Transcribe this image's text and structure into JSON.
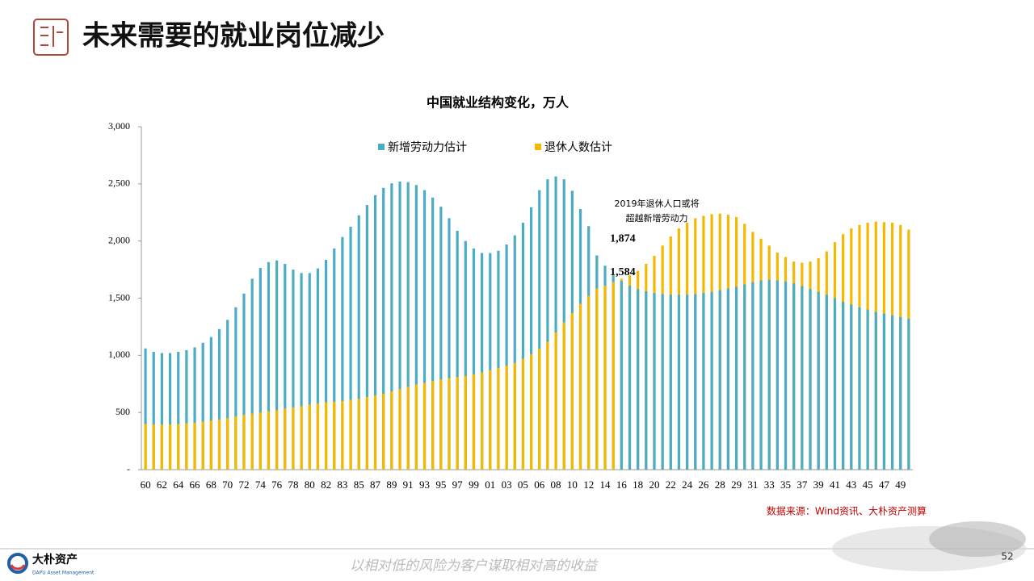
{
  "header": {
    "title": "未来需要的就业岗位减少"
  },
  "chart_data": {
    "type": "bar",
    "title": "中国就业结构变化，万人",
    "categories": [
      "60",
      null,
      "62",
      null,
      "64",
      null,
      "66",
      null,
      "68",
      null,
      "70",
      null,
      "72",
      null,
      "74",
      null,
      "76",
      null,
      "78",
      null,
      "80",
      null,
      "82",
      null,
      "83",
      null,
      "85",
      null,
      "87",
      null,
      "89",
      null,
      "91",
      null,
      "93",
      null,
      "95",
      null,
      "97",
      null,
      "99",
      null,
      "01",
      null,
      "03",
      null,
      "05",
      null,
      "06",
      null,
      "08",
      null,
      "10",
      null,
      "12",
      null,
      "14",
      null,
      "16",
      null,
      "18",
      null,
      "20",
      null,
      "22",
      null,
      "24",
      null,
      "26",
      null,
      "28",
      null,
      "29",
      null,
      "31",
      null,
      "33",
      null,
      "35",
      null,
      "37",
      null,
      "39",
      null,
      "41",
      null,
      "43",
      null,
      "45",
      null,
      "47",
      null,
      "49",
      null
    ],
    "series": [
      {
        "name": "新增劳动力估计",
        "color": "#4bacc6",
        "values": [
          1060,
          1030,
          1020,
          1020,
          1030,
          1045,
          1070,
          1110,
          1160,
          1230,
          1310,
          1420,
          1540,
          1670,
          1765,
          1815,
          1830,
          1800,
          1750,
          1720,
          1720,
          1760,
          1835,
          1935,
          2035,
          2125,
          2225,
          2315,
          2400,
          2465,
          2505,
          2520,
          2515,
          2490,
          2445,
          2380,
          2300,
          2200,
          2090,
          2000,
          1935,
          1895,
          1895,
          1915,
          1970,
          2050,
          2160,
          2295,
          2445,
          2540,
          2565,
          2540,
          2440,
          2280,
          2130,
          1874,
          1784,
          1700,
          1650,
          1610,
          1580,
          1560,
          1545,
          1535,
          1530,
          1530,
          1530,
          1535,
          1545,
          1555,
          1570,
          1585,
          1600,
          1620,
          1640,
          1655,
          1660,
          1655,
          1645,
          1630,
          1605,
          1580,
          1555,
          1530,
          1500,
          1470,
          1445,
          1420,
          1400,
          1380,
          1365,
          1350,
          1335,
          1320
        ],
        "value_labels": [
          null,
          null,
          null,
          null,
          null,
          null,
          null,
          null,
          null,
          null,
          null,
          null,
          null,
          null,
          null,
          null,
          null,
          null,
          null,
          null,
          null,
          null,
          null,
          null,
          null,
          null,
          null,
          null,
          null,
          null,
          null,
          null,
          null,
          null,
          null,
          null,
          null,
          null,
          null,
          null,
          null,
          null,
          null,
          null,
          null,
          null,
          null,
          null,
          null,
          null,
          null,
          null,
          null,
          null,
          null,
          "1,874",
          null,
          null,
          null,
          null,
          null,
          null,
          null,
          null,
          null,
          null,
          null,
          null,
          null,
          null,
          null,
          null,
          null,
          null,
          null,
          null,
          null,
          null,
          null,
          null,
          null,
          null,
          null,
          null,
          null,
          null,
          null,
          null,
          null,
          null,
          null,
          null,
          null,
          null
        ]
      },
      {
        "name": "退休人数估计",
        "color": "#f5b800",
        "values": [
          400,
          395,
          395,
          395,
          400,
          405,
          410,
          420,
          430,
          440,
          450,
          465,
          480,
          490,
          500,
          510,
          520,
          535,
          545,
          555,
          570,
          580,
          590,
          595,
          600,
          610,
          620,
          635,
          650,
          665,
          685,
          705,
          725,
          745,
          760,
          775,
          790,
          800,
          810,
          820,
          835,
          850,
          870,
          890,
          910,
          935,
          970,
          1010,
          1060,
          1120,
          1200,
          1290,
          1370,
          1450,
          1520,
          1584,
          1610,
          1640,
          1670,
          1700,
          1740,
          1800,
          1870,
          1960,
          2040,
          2110,
          2160,
          2200,
          2220,
          2235,
          2240,
          2230,
          2210,
          2150,
          2080,
          2020,
          1960,
          1900,
          1860,
          1820,
          1810,
          1820,
          1850,
          1910,
          1990,
          2060,
          2110,
          2140,
          2160,
          2170,
          2165,
          2160,
          2140,
          2100
        ],
        "value_labels": [
          null,
          null,
          null,
          null,
          null,
          null,
          null,
          null,
          null,
          null,
          null,
          null,
          null,
          null,
          null,
          null,
          null,
          null,
          null,
          null,
          null,
          null,
          null,
          null,
          null,
          null,
          null,
          null,
          null,
          null,
          null,
          null,
          null,
          null,
          null,
          null,
          null,
          null,
          null,
          null,
          null,
          null,
          null,
          null,
          null,
          null,
          null,
          null,
          null,
          null,
          null,
          null,
          null,
          null,
          null,
          "1,584",
          null,
          null,
          null,
          null,
          null,
          null,
          null,
          null,
          null,
          null,
          null,
          null,
          null,
          null,
          null,
          null,
          null,
          null,
          null,
          null,
          null,
          null,
          null,
          null,
          null,
          null,
          null,
          null,
          null,
          null,
          null,
          null,
          null,
          null,
          null,
          null,
          null,
          null
        ]
      }
    ],
    "ylim": [
      0,
      3000
    ],
    "yticks": [
      {
        "value": 0,
        "label": "-"
      },
      500,
      {
        "value": 1000,
        "label": "1,000"
      },
      {
        "value": 1500,
        "label": "1,500"
      },
      {
        "value": 2000,
        "label": "2,000"
      },
      {
        "value": 2500,
        "label": "2,500"
      },
      {
        "value": 3000,
        "label": "3,000"
      }
    ],
    "grid": false,
    "legend": "top",
    "annotation": [
      "2019年退休人口或将",
      "超越新增劳动力"
    ],
    "source": "数据来源：Wind资讯、大朴资产测算"
  },
  "footer": {
    "slogan": "以相对低的风险为客户谋取相对高的收益",
    "page": "52",
    "logo": "大朴资产",
    "logo_sub": "DAPU Asset Management"
  }
}
